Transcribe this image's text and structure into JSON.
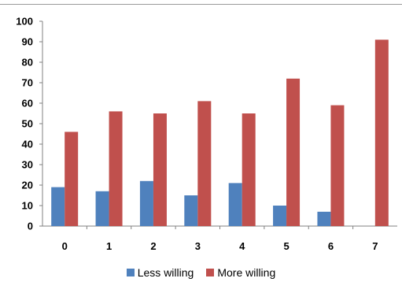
{
  "chart_data": {
    "type": "bar",
    "title": "",
    "xlabel": "",
    "ylabel": "",
    "categories": [
      "0",
      "1",
      "2",
      "3",
      "4",
      "5",
      "6",
      "7"
    ],
    "ylim": [
      0,
      100
    ],
    "yticks": [
      0,
      10,
      20,
      30,
      40,
      50,
      60,
      70,
      80,
      90,
      100
    ],
    "grid": false,
    "legend_position": "bottom",
    "series": [
      {
        "name": "Less willing",
        "color": "#4f81bd",
        "values": [
          19,
          17,
          22,
          15,
          21,
          10,
          7,
          0
        ]
      },
      {
        "name": "More willing",
        "color": "#c0504d",
        "values": [
          46,
          56,
          55,
          61,
          55,
          72,
          59,
          91
        ]
      }
    ]
  }
}
